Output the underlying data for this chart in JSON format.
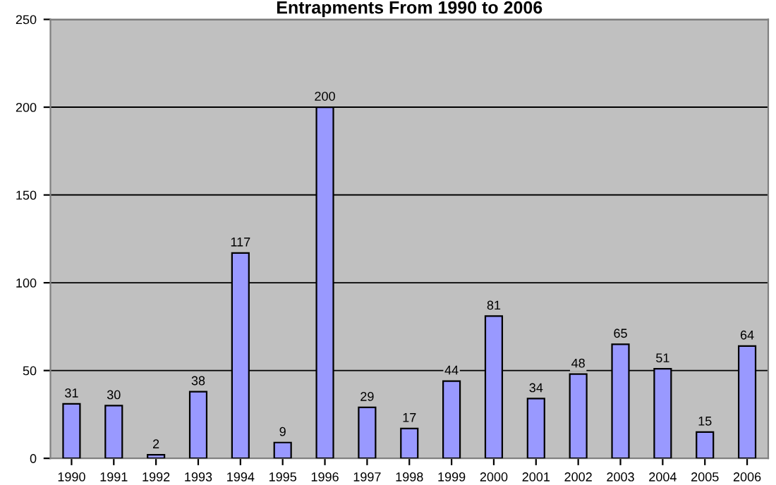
{
  "chart_data": {
    "type": "bar",
    "title": "Entrapments From 1990 to 2006",
    "categories": [
      "1990",
      "1991",
      "1992",
      "1993",
      "1994",
      "1995",
      "1996",
      "1997",
      "1998",
      "1999",
      "2000",
      "2001",
      "2002",
      "2003",
      "2004",
      "2005",
      "2006"
    ],
    "values": [
      31,
      30,
      2,
      38,
      117,
      9,
      200,
      29,
      17,
      44,
      81,
      34,
      48,
      65,
      51,
      15,
      64
    ],
    "color": "#9999ff",
    "ylim": [
      0,
      250
    ],
    "yticks": [
      0,
      50,
      100,
      150,
      200,
      250
    ],
    "grid": "y",
    "data_labels": true
  }
}
